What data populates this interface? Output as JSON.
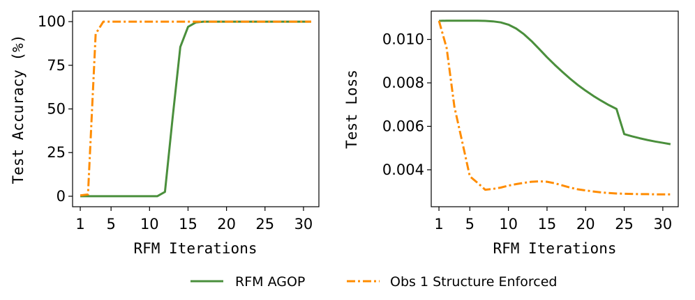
{
  "colors": {
    "rfm": "#4a8f3c",
    "obs": "#ff8c00",
    "axis": "#000000"
  },
  "legend": {
    "rfm_label": "RFM AGOP",
    "obs_label": "Obs 1 Structure Enforced"
  },
  "chart_data": [
    {
      "type": "line",
      "title": "",
      "xlabel": "RFM Iterations",
      "ylabel": "Test Accuracy (%)",
      "xlim": [
        0,
        32
      ],
      "ylim": [
        -6,
        106
      ],
      "xticks": [
        1,
        5,
        10,
        15,
        20,
        25,
        30
      ],
      "yticks": [
        0,
        25,
        50,
        75,
        100
      ],
      "ytick_labels": [
        "0",
        "25",
        "50",
        "75",
        "100"
      ],
      "series": [
        {
          "name": "RFM AGOP",
          "style": "solid",
          "x": [
            1,
            2,
            3,
            4,
            5,
            6,
            7,
            8,
            9,
            10,
            11,
            12,
            13,
            14,
            15,
            16,
            17,
            18,
            19,
            20,
            21,
            22,
            23,
            24,
            25,
            26,
            27,
            28,
            29,
            30,
            31
          ],
          "y": [
            0,
            0,
            0,
            0,
            0,
            0,
            0,
            0,
            0,
            0,
            0,
            2.5,
            45,
            85.5,
            97,
            99.5,
            100,
            100,
            100,
            100,
            100,
            100,
            100,
            100,
            100,
            100,
            100,
            100,
            100,
            100,
            100
          ]
        },
        {
          "name": "Obs 1 Structure Enforced",
          "style": "dashdot",
          "x": [
            1,
            2,
            3,
            4,
            5,
            6,
            7,
            8,
            9,
            10,
            11,
            12,
            13,
            14,
            15,
            16,
            17,
            18,
            19,
            20,
            21,
            22,
            23,
            24,
            25,
            26,
            27,
            28,
            29,
            30,
            31
          ],
          "y": [
            0.5,
            1,
            93,
            100,
            100,
            100,
            100,
            100,
            100,
            100,
            100,
            100,
            100,
            100,
            100,
            100,
            100,
            100,
            100,
            100,
            100,
            100,
            100,
            100,
            100,
            100,
            100,
            100,
            100,
            100,
            100
          ]
        }
      ]
    },
    {
      "type": "line",
      "title": "",
      "xlabel": "RFM Iterations",
      "ylabel": "Test Loss",
      "xlim": [
        0,
        32
      ],
      "ylim": [
        0.0023,
        0.0113
      ],
      "xticks": [
        1,
        5,
        10,
        15,
        20,
        25,
        30
      ],
      "yticks": [
        0.004,
        0.006,
        0.008,
        0.01
      ],
      "ytick_labels": [
        "0.004",
        "0.006",
        "0.008",
        "0.010"
      ],
      "series": [
        {
          "name": "RFM AGOP",
          "style": "solid",
          "x": [
            1,
            2,
            3,
            4,
            5,
            6,
            7,
            8,
            9,
            10,
            11,
            12,
            13,
            14,
            15,
            16,
            17,
            18,
            19,
            20,
            21,
            22,
            23,
            24,
            25,
            26,
            27,
            28,
            29,
            30,
            31
          ],
          "y": [
            0.01085,
            0.01086,
            0.01086,
            0.01086,
            0.01086,
            0.01086,
            0.01085,
            0.01083,
            0.01078,
            0.01068,
            0.0105,
            0.01024,
            0.00992,
            0.00955,
            0.00918,
            0.00883,
            0.0085,
            0.00819,
            0.0079,
            0.00764,
            0.0074,
            0.00718,
            0.00698,
            0.0068,
            0.00564,
            0.00554,
            0.00545,
            0.00537,
            0.0053,
            0.00524,
            0.00518
          ]
        },
        {
          "name": "Obs 1 Structure Enforced",
          "style": "dashdot",
          "x": [
            1,
            2,
            3,
            4,
            5,
            6,
            7,
            8,
            9,
            10,
            11,
            12,
            13,
            14,
            15,
            16,
            17,
            18,
            19,
            20,
            21,
            22,
            23,
            24,
            25,
            26,
            27,
            28,
            29,
            30,
            31
          ],
          "y": [
            0.01085,
            0.0096,
            0.0069,
            0.0053,
            0.0037,
            0.0034,
            0.00308,
            0.00312,
            0.00318,
            0.00327,
            0.00334,
            0.0034,
            0.00345,
            0.00347,
            0.00345,
            0.00338,
            0.00328,
            0.00318,
            0.0031,
            0.00305,
            0.003,
            0.00296,
            0.00293,
            0.00291,
            0.0029,
            0.00289,
            0.00288,
            0.00288,
            0.00287,
            0.00287,
            0.00287
          ]
        }
      ]
    }
  ]
}
